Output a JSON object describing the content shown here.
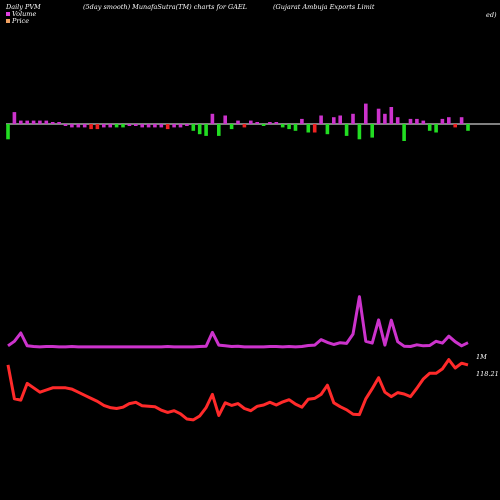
{
  "header": {
    "left": "Daily PVM",
    "middle": "(5day smooth) MunafaSutra(TM) charts for GAEL",
    "right": "(Gujarat Ambuja Exports Limit",
    "right_cont": "ed)"
  },
  "legend": {
    "items": [
      {
        "label": "Volume",
        "color": "#e040e0"
      },
      {
        "label": "Price",
        "color": "#f0a060"
      }
    ]
  },
  "colors": {
    "volume_line": "#cc33cc",
    "price_line": "#ff2a2a",
    "bar_up": "#cc33cc",
    "bar_down": "#22dd22",
    "bar_red": "#ee2222",
    "baseline": "#ffffff"
  },
  "chart_data": {
    "type": "line",
    "title": "(5day smooth) MunafaSutra(TM) charts for GAEL",
    "series": [
      {
        "name": "Volume",
        "end_label": "1M",
        "values": [
          0.93,
          1.06,
          1.3,
          0.93,
          0.91,
          0.9,
          0.91,
          0.91,
          0.9,
          0.9,
          0.91,
          0.9,
          0.9,
          0.9,
          0.9,
          0.9,
          0.9,
          0.9,
          0.9,
          0.9,
          0.9,
          0.9,
          0.9,
          0.9,
          0.9,
          0.91,
          0.9,
          0.9,
          0.9,
          0.9,
          0.91,
          0.92,
          1.32,
          0.95,
          0.93,
          0.91,
          0.92,
          0.9,
          0.9,
          0.9,
          0.9,
          0.91,
          0.91,
          0.9,
          0.91,
          0.9,
          0.91,
          0.94,
          0.95,
          1.11,
          1.03,
          0.97,
          1.02,
          1.0,
          1.27,
          2.35,
          1.06,
          1.01,
          1.68,
          0.95,
          1.67,
          1.05,
          0.92,
          0.91,
          0.96,
          0.93,
          0.94,
          1.06,
          1.01,
          1.21,
          1.05,
          0.93,
          1.02
        ],
        "bar_kind": [
          "g",
          "m",
          "m",
          "m",
          "m",
          "m",
          "m",
          "m",
          "m",
          "m",
          "m",
          "m",
          "m",
          "r",
          "r",
          "m",
          "m",
          "g",
          "g",
          "m",
          "m",
          "m",
          "m",
          "m",
          "m",
          "r",
          "m",
          "m",
          "m",
          "g",
          "g",
          "g",
          "m",
          "g",
          "m",
          "g",
          "m",
          "r",
          "m",
          "m",
          "g",
          "m",
          "m",
          "g",
          "g",
          "g",
          "m",
          "g",
          "r",
          "m",
          "g",
          "m",
          "m",
          "g",
          "m",
          "g",
          "m",
          "g",
          "m",
          "m",
          "m",
          "m",
          "g",
          "m",
          "m",
          "m",
          "g",
          "g",
          "m",
          "m",
          "r",
          "m",
          "g"
        ],
        "bar_value": [
          -0.9,
          0.7,
          0.2,
          0.2,
          0.2,
          0.2,
          0.2,
          0.1,
          0.1,
          -0.1,
          -0.2,
          -0.2,
          -0.2,
          -0.3,
          -0.3,
          -0.2,
          -0.2,
          -0.2,
          -0.2,
          -0.1,
          -0.1,
          -0.2,
          -0.2,
          -0.2,
          -0.2,
          -0.3,
          -0.2,
          -0.2,
          -0.1,
          -0.4,
          -0.6,
          -0.7,
          0.6,
          -0.7,
          0.5,
          -0.3,
          0.2,
          -0.2,
          0.2,
          0.1,
          -0.1,
          0.1,
          0.1,
          -0.2,
          -0.3,
          -0.4,
          0.3,
          -0.5,
          -0.5,
          0.5,
          -0.6,
          0.4,
          0.5,
          -0.7,
          0.6,
          -0.9,
          1.2,
          -0.8,
          0.9,
          0.6,
          1.0,
          0.4,
          -1.0,
          0.3,
          0.3,
          0.2,
          -0.4,
          -0.5,
          0.3,
          0.4,
          -0.2,
          0.4,
          -0.4
        ]
      },
      {
        "name": "Price",
        "end_label": "118.21",
        "values": [
          118.2,
          110.5,
          110.2,
          114.0,
          113.0,
          112.0,
          112.5,
          113.0,
          113.0,
          113.0,
          112.7,
          112.0,
          111.3,
          110.6,
          109.9,
          109.0,
          108.5,
          108.3,
          108.6,
          109.4,
          109.7,
          108.9,
          108.8,
          108.7,
          107.9,
          107.4,
          107.8,
          107.1,
          105.9,
          105.7,
          106.6,
          108.5,
          111.5,
          106.7,
          109.6,
          109.0,
          109.4,
          108.3,
          107.8,
          108.8,
          109.1,
          109.7,
          109.1,
          109.8,
          110.3,
          109.3,
          108.6,
          110.4,
          110.6,
          111.5,
          113.6,
          109.6,
          108.7,
          108.0,
          107.0,
          106.9,
          110.5,
          112.8,
          115.3,
          112.0,
          111.0,
          111.9,
          111.6,
          111.0,
          112.9,
          115.0,
          116.3,
          116.3,
          117.3,
          119.4,
          117.5,
          118.6,
          118.2
        ]
      }
    ],
    "ylim_volume": [
      0.0,
      2.4
    ],
    "ylim_price": [
      100.0,
      125.0
    ],
    "grid": false,
    "legend_position": "top-left"
  }
}
